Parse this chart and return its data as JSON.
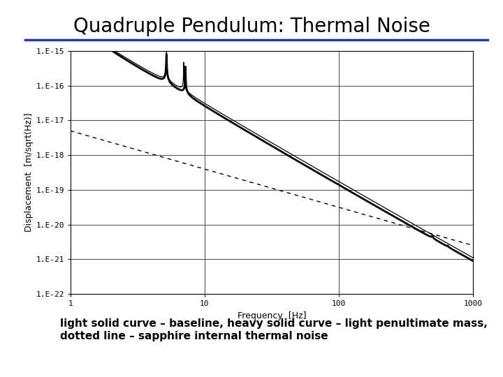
{
  "title": "Quadruple Pendulum: Thermal Noise",
  "xlabel": "Frequency  [Hz]",
  "ylabel": "Displacement  [m/sqrt(Hz)]",
  "caption_line1": "light solid curve – baseline, heavy solid curve – light penultimate mass,",
  "caption_line2": "dotted line – sapphire internal thermal noise",
  "xlim": [
    1,
    1000
  ],
  "ylim": [
    1e-22,
    1e-15
  ],
  "background_color": "#ffffff",
  "title_color": "#000000",
  "separator_color": "#1a3ab5",
  "axis_color": "#000000",
  "text_color": "#000000",
  "caption_color": "#000000",
  "title_fontsize": 20,
  "axis_label_fontsize": 9,
  "tick_fontsize": 8,
  "caption_fontsize": 11
}
